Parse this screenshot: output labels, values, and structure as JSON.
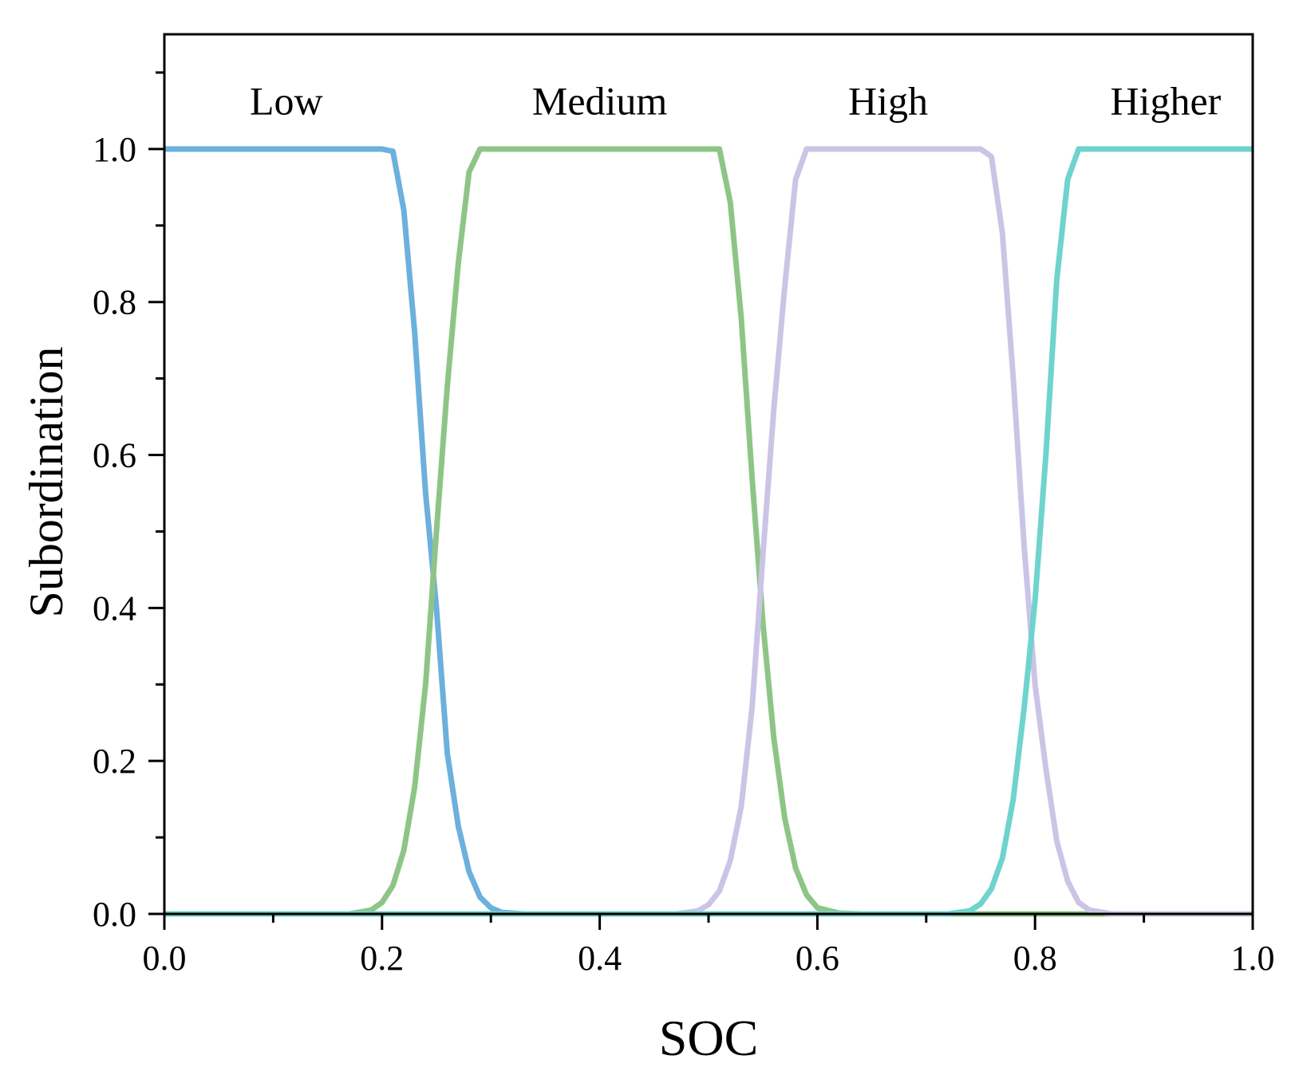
{
  "chart_data": {
    "type": "line",
    "title": "",
    "xlabel": "SOC",
    "ylabel": "Subordination",
    "xlim": [
      0.0,
      1.0
    ],
    "ylim": [
      0.0,
      1.15
    ],
    "x_ticks": [
      0.0,
      0.2,
      0.4,
      0.6,
      0.8,
      1.0
    ],
    "x_tick_labels": [
      "0.0",
      "0.2",
      "0.4",
      "0.6",
      "0.8",
      "1.0"
    ],
    "y_ticks": [
      0.0,
      0.2,
      0.4,
      0.6,
      0.8,
      1.0
    ],
    "y_tick_labels": [
      "0.0",
      "0.2",
      "0.4",
      "0.6",
      "0.8",
      "1.0"
    ],
    "grid": false,
    "series": [
      {
        "name": "Low",
        "color": "#6cb0dd",
        "x": [
          0.0,
          0.2,
          0.21,
          0.22,
          0.23,
          0.24,
          0.25,
          0.26,
          0.27,
          0.28,
          0.29,
          0.3,
          0.31,
          0.33,
          1.0
        ],
        "y": [
          1.0,
          1.0,
          0.997,
          0.92,
          0.76,
          0.55,
          0.4,
          0.21,
          0.115,
          0.055,
          0.022,
          0.008,
          0.002,
          0.0,
          0.0
        ]
      },
      {
        "name": "Medium",
        "color": "#8ec587",
        "x": [
          0.0,
          0.17,
          0.19,
          0.2,
          0.21,
          0.22,
          0.23,
          0.24,
          0.25,
          0.26,
          0.27,
          0.28,
          0.29,
          0.51,
          0.52,
          0.53,
          0.54,
          0.55,
          0.56,
          0.57,
          0.58,
          0.59,
          0.6,
          0.62,
          0.64,
          1.0
        ],
        "y": [
          0.0,
          0.0,
          0.005,
          0.015,
          0.037,
          0.083,
          0.166,
          0.3,
          0.5,
          0.69,
          0.85,
          0.97,
          1.0,
          1.0,
          0.93,
          0.78,
          0.57,
          0.38,
          0.23,
          0.125,
          0.06,
          0.025,
          0.008,
          0.001,
          0.0,
          0.0
        ]
      },
      {
        "name": "High",
        "color": "#cbc4e6",
        "x": [
          0.0,
          0.47,
          0.49,
          0.5,
          0.51,
          0.52,
          0.53,
          0.54,
          0.55,
          0.56,
          0.57,
          0.58,
          0.59,
          0.75,
          0.76,
          0.77,
          0.78,
          0.79,
          0.8,
          0.81,
          0.82,
          0.83,
          0.84,
          0.85,
          0.87,
          1.0
        ],
        "y": [
          0.0,
          0.0,
          0.004,
          0.012,
          0.03,
          0.07,
          0.14,
          0.27,
          0.47,
          0.66,
          0.82,
          0.96,
          1.0,
          1.0,
          0.99,
          0.89,
          0.7,
          0.48,
          0.3,
          0.19,
          0.095,
          0.043,
          0.015,
          0.005,
          0.0,
          0.0
        ]
      },
      {
        "name": "Higher",
        "color": "#6fd3ce",
        "x": [
          0.0,
          0.72,
          0.74,
          0.75,
          0.76,
          0.77,
          0.78,
          0.79,
          0.8,
          0.81,
          0.82,
          0.83,
          0.84,
          1.0
        ],
        "y": [
          0.0,
          0.0,
          0.004,
          0.013,
          0.033,
          0.073,
          0.15,
          0.27,
          0.41,
          0.6,
          0.83,
          0.96,
          1.0,
          1.0
        ]
      }
    ],
    "annotations": [
      {
        "text": "Low",
        "x": 0.112,
        "y": 1.045
      },
      {
        "text": "Medium",
        "x": 0.4,
        "y": 1.045
      },
      {
        "text": "High",
        "x": 0.665,
        "y": 1.045
      },
      {
        "text": "Higher",
        "x": 0.92,
        "y": 1.045
      }
    ]
  }
}
